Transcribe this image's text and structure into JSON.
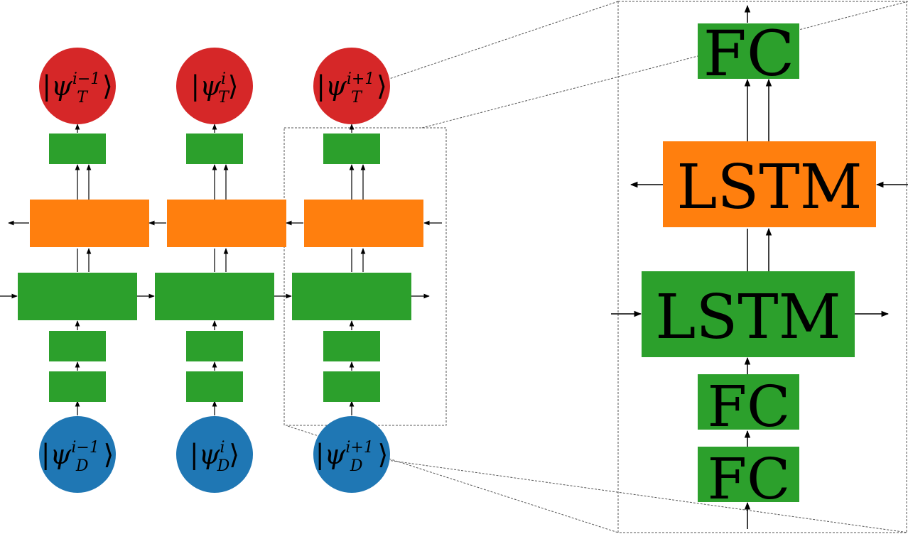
{
  "colors": {
    "green": "#2ca02c",
    "orange": "#ff7f0e",
    "red": "#d62728",
    "blue": "#1f77b4",
    "line": "#000000",
    "dash": "#555555"
  },
  "columns": [
    {
      "target_state": {
        "psi": "ψ",
        "sub": "T",
        "sup": "i−1"
      },
      "input_state": {
        "psi": "ψ",
        "sub": "D",
        "sup": "i−1"
      }
    },
    {
      "target_state": {
        "psi": "ψ",
        "sub": "T",
        "sup": "i"
      },
      "input_state": {
        "psi": "ψ",
        "sub": "D",
        "sup": "i"
      }
    },
    {
      "target_state": {
        "psi": "ψ",
        "sub": "T",
        "sup": "i+1"
      },
      "input_state": {
        "psi": "ψ",
        "sub": "D",
        "sup": "i+1"
      }
    }
  ],
  "detail": {
    "fc_top": "FC",
    "lstm_backward": "LSTM",
    "lstm_forward": "LSTM",
    "fc_mid": "FC",
    "fc_bottom": "FC"
  }
}
